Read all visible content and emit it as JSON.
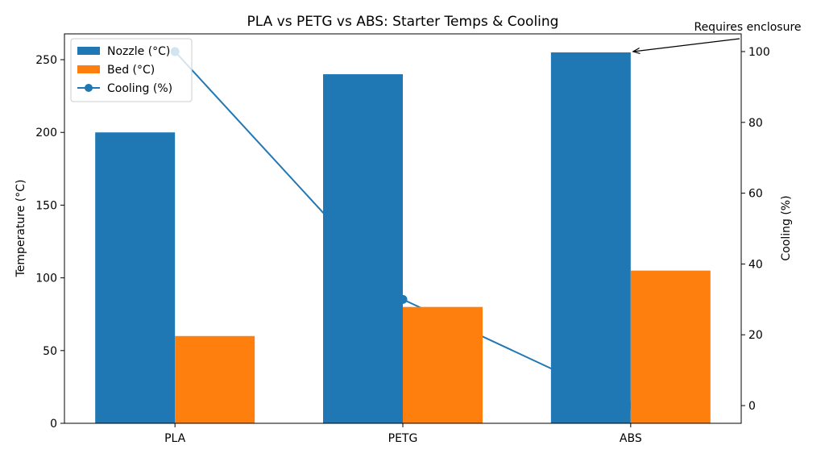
{
  "chart_data": {
    "type": "bar",
    "title": "PLA vs PETG vs ABS: Starter Temps & Cooling",
    "categories": [
      "PLA",
      "PETG",
      "ABS"
    ],
    "ylabel": "Temperature (°C)",
    "y2label": "Cooling (%)",
    "series": [
      {
        "name": "Nozzle (°C)",
        "color": "#1f77b4",
        "values": [
          200,
          240,
          255
        ]
      },
      {
        "name": "Bed (°C)",
        "color": "#ff7f0e",
        "values": [
          60,
          80,
          105
        ]
      },
      {
        "name": "Cooling (%)",
        "color": "#1f77b4",
        "values": [
          100,
          30,
          0
        ],
        "type": "line",
        "axis": "y2"
      }
    ],
    "ylim": [
      0,
      267.75
    ],
    "yticks": [
      0,
      50,
      100,
      150,
      200,
      250
    ],
    "y2lim": [
      -5,
      105
    ],
    "y2ticks": [
      0,
      20,
      40,
      60,
      80,
      100
    ],
    "annotation": "Requires enclosure",
    "legend": "upper left"
  }
}
